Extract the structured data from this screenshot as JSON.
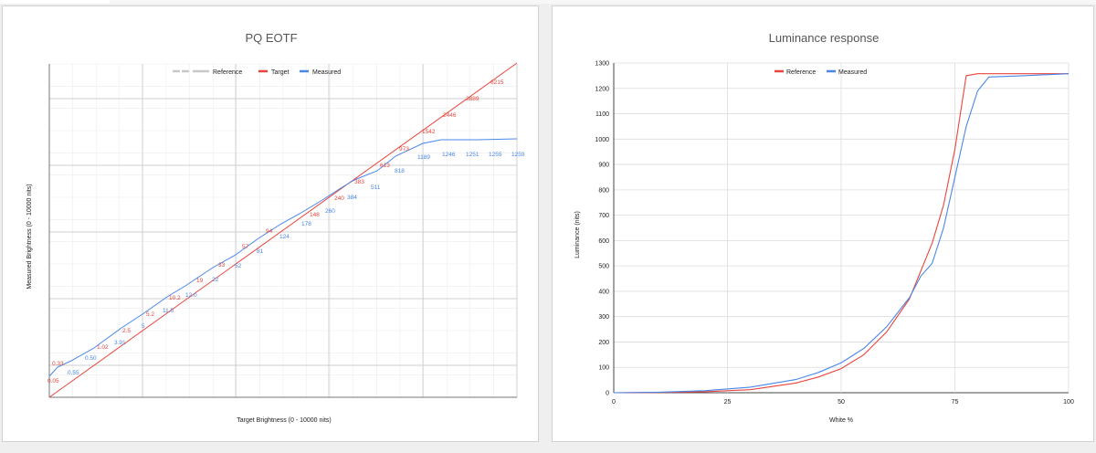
{
  "chart_data": [
    {
      "type": "line",
      "title": "PQ EOTF",
      "xlabel": "Target Brightness  (0 - 10000 nits)",
      "ylabel": "Measured Brightness  (0 - 10000 nits)",
      "grid": true,
      "legend": "top",
      "series": [
        {
          "name": "Reference",
          "color": "#c8c8c8"
        },
        {
          "name": "Target",
          "color": "#e8453c",
          "labels": [
            "0.05",
            "0.33",
            "1.02",
            "2.5",
            "5.2",
            "10.2",
            "19",
            "33",
            "57",
            "94",
            "148",
            "240",
            "383",
            "613",
            "973",
            "1542",
            "2446",
            "3889",
            "6215"
          ]
        },
        {
          "name": "Measured",
          "color": "#4a86e8",
          "labels": [
            "0.55",
            "0.50",
            "3.91",
            "5",
            "11.0",
            "12.0",
            "22",
            "52",
            "81",
            "124",
            "178",
            "260",
            "384",
            "511",
            "818",
            "1189",
            "1246",
            "1251",
            "1255",
            "1259"
          ]
        }
      ]
    },
    {
      "type": "line",
      "title": "Luminance response",
      "xlabel": "White %",
      "ylabel": "Luminance (nits)",
      "xlim": [
        0,
        100
      ],
      "ylim": [
        0,
        1300
      ],
      "xticks": [
        0,
        25,
        50,
        75,
        100
      ],
      "yticks": [
        0,
        100,
        200,
        300,
        400,
        500,
        600,
        700,
        800,
        900,
        1000,
        1100,
        1200,
        1300
      ],
      "grid": true,
      "legend": "top",
      "series": [
        {
          "name": "Reference",
          "color": "#e8453c",
          "x": [
            0,
            10,
            20,
            30,
            40,
            45,
            50,
            55,
            60,
            65,
            70,
            72.5,
            75,
            77.5,
            80,
            90,
            100
          ],
          "y": [
            0,
            1,
            4,
            12,
            38,
            62,
            95,
            150,
            240,
            370,
            590,
            740,
            960,
            1250,
            1258,
            1258,
            1258
          ]
        },
        {
          "name": "Measured",
          "color": "#4a86e8",
          "x": [
            0,
            10,
            20,
            30,
            40,
            45,
            50,
            55,
            60,
            65,
            67.5,
            70,
            72.5,
            75,
            77.5,
            80,
            82.5,
            90,
            100
          ],
          "y": [
            0,
            2,
            8,
            22,
            52,
            80,
            118,
            175,
            260,
            375,
            460,
            510,
            650,
            850,
            1050,
            1190,
            1245,
            1250,
            1258
          ]
        }
      ]
    }
  ]
}
